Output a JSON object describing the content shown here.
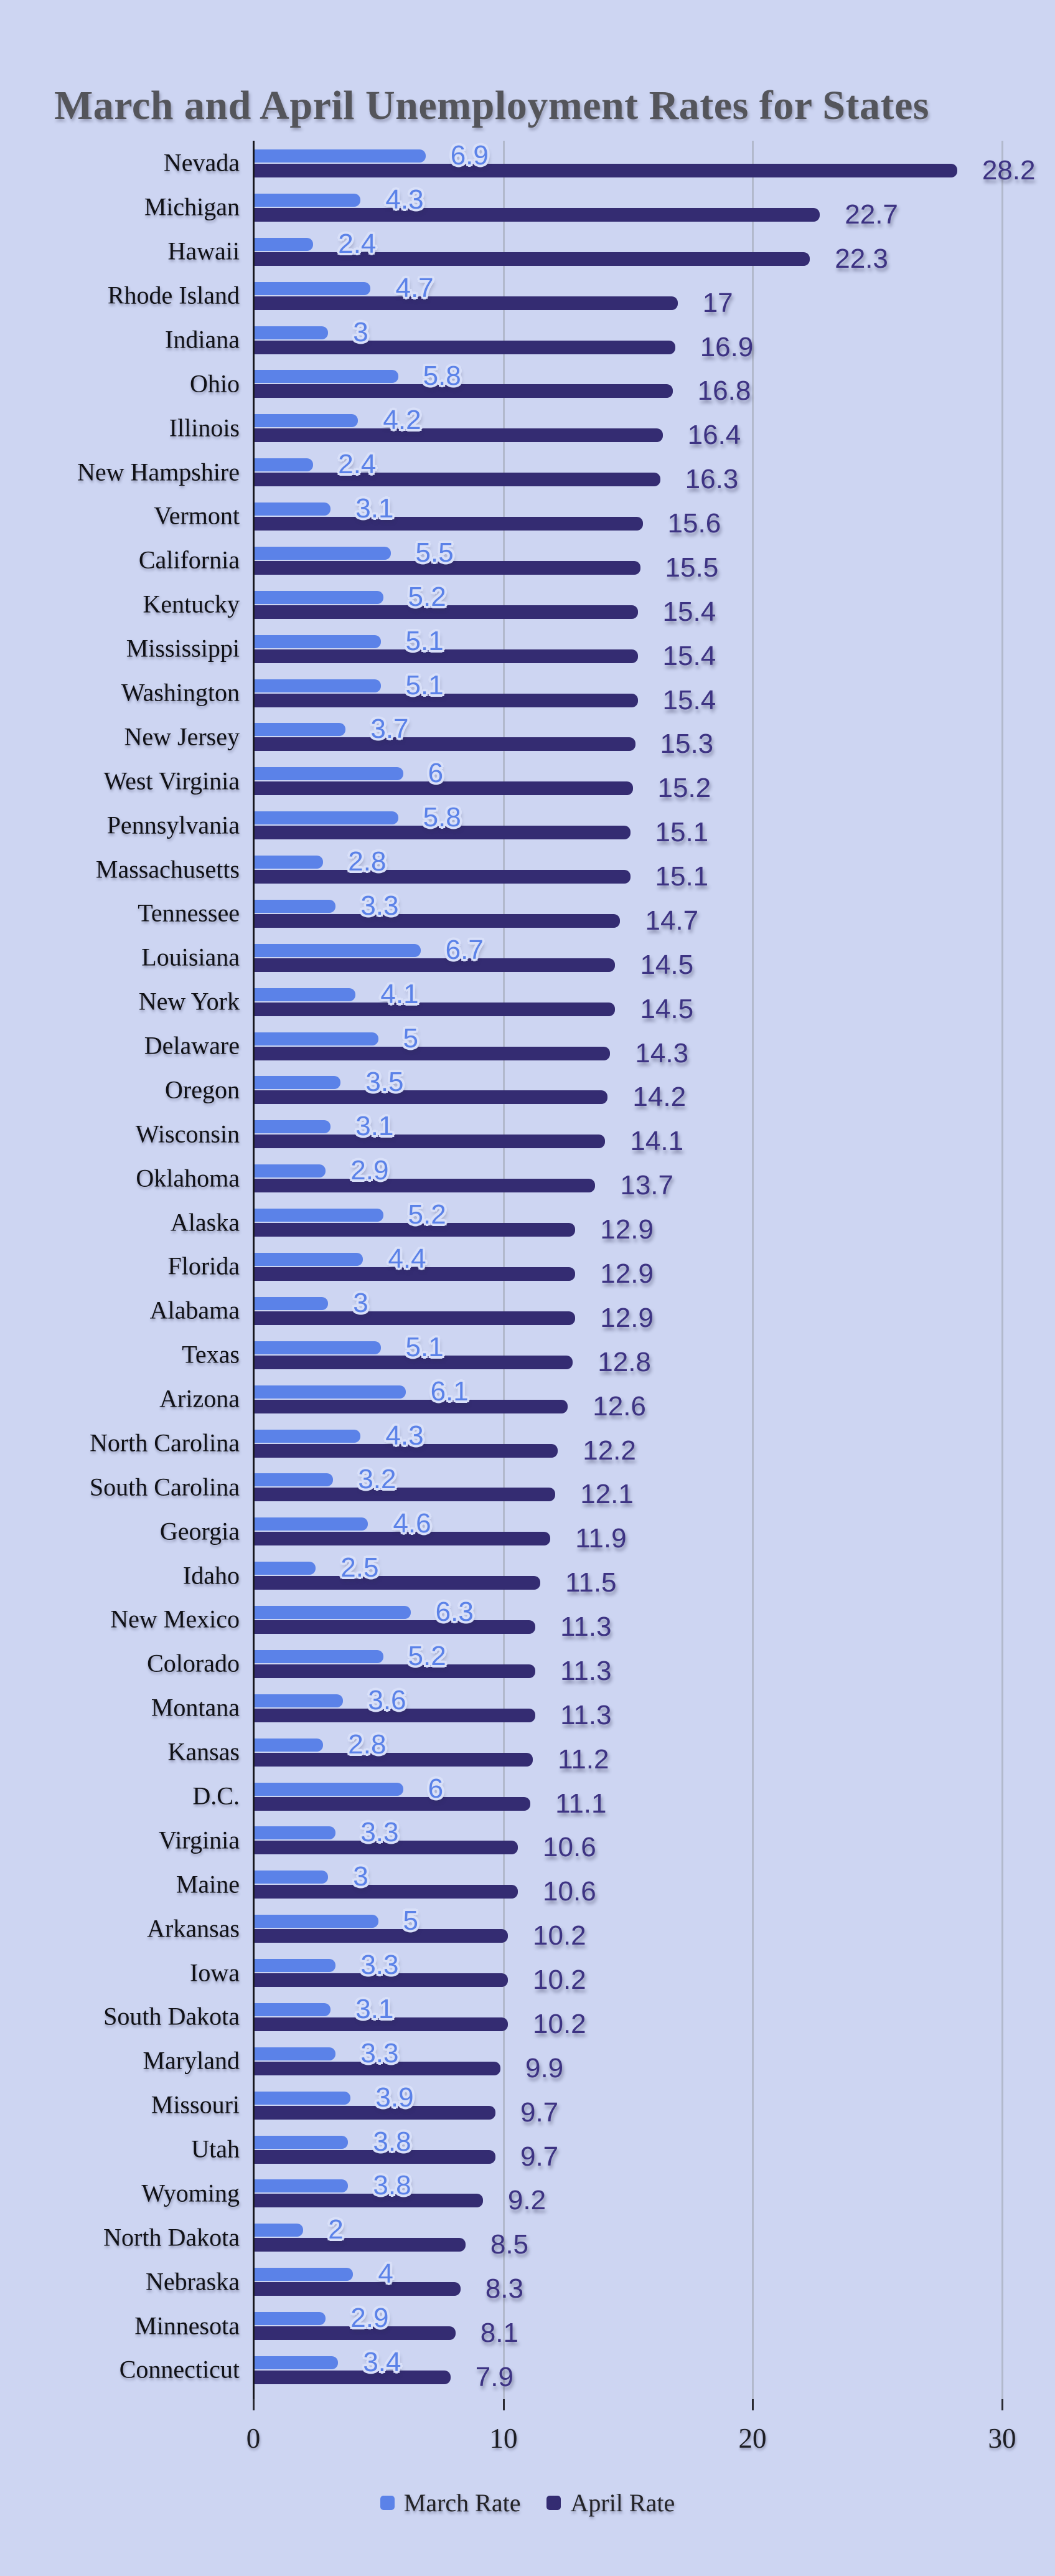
{
  "title": "March and April Unemployment Rates for States",
  "colors": {
    "background": "#cdd5f2",
    "march_bar": "#5b82e8",
    "april_bar": "#342c72",
    "march_value_label": "#5b82e8",
    "april_value_label": "#3d3383",
    "gridline": "#b2b9cc",
    "zero_axis": "#17171d",
    "title_text": "#54555b",
    "state_label_text": "#101116",
    "axis_tick_text": "#1d1e24",
    "legend_text": "#232327"
  },
  "axis": {
    "ticks": [
      "0",
      "10",
      "20",
      "30"
    ],
    "min": 0,
    "max": 30
  },
  "legend": {
    "items": [
      {
        "label": "March Rate",
        "color": "#5b82e8"
      },
      {
        "label": "April Rate",
        "color": "#342c72"
      }
    ]
  },
  "chart_data": {
    "type": "bar",
    "orientation": "horizontal",
    "title": "March and April Unemployment Rates for States",
    "xlabel": "",
    "ylabel": "",
    "xlim": [
      0,
      30
    ],
    "gridlines": [
      0,
      10,
      20,
      30
    ],
    "grid": "vertical",
    "legend_position": "bottom",
    "value_labels": true,
    "categories": [
      "Nevada",
      "Michigan",
      "Hawaii",
      "Rhode Island",
      "Indiana",
      "Ohio",
      "Illinois",
      "New Hampshire",
      "Vermont",
      "California",
      "Kentucky",
      "Mississippi",
      "Washington",
      "New Jersey",
      "West Virginia",
      "Pennsylvania",
      "Massachusetts",
      "Tennessee",
      "Louisiana",
      "New York",
      "Delaware",
      "Oregon",
      "Wisconsin",
      "Oklahoma",
      "Alaska",
      "Florida",
      "Alabama",
      "Texas",
      "Arizona",
      "North Carolina",
      "South Carolina",
      "Georgia",
      "Idaho",
      "New Mexico",
      "Colorado",
      "Montana",
      "Kansas",
      "D.C.",
      "Virginia",
      "Maine",
      "Arkansas",
      "Iowa",
      "South Dakota",
      "Maryland",
      "Missouri",
      "Utah",
      "Wyoming",
      "North Dakota",
      "Nebraska",
      "Minnesota",
      "Connecticut"
    ],
    "series": [
      {
        "name": "March Rate",
        "color": "#5b82e8",
        "values": [
          6.9,
          4.3,
          2.4,
          4.7,
          3,
          5.8,
          4.2,
          2.4,
          3.1,
          5.5,
          5.2,
          5.1,
          5.1,
          3.7,
          6,
          5.8,
          2.8,
          3.3,
          6.7,
          4.1,
          5,
          3.5,
          3.1,
          2.9,
          5.2,
          4.4,
          3,
          5.1,
          6.1,
          4.3,
          3.2,
          4.6,
          2.5,
          6.3,
          5.2,
          3.6,
          2.8,
          6,
          3.3,
          3,
          5,
          3.3,
          3.1,
          3.3,
          3.9,
          3.8,
          3.8,
          2,
          4,
          2.9,
          3.4
        ]
      },
      {
        "name": "April Rate",
        "color": "#342c72",
        "values": [
          28.2,
          22.7,
          22.3,
          17,
          16.9,
          16.8,
          16.4,
          16.3,
          15.6,
          15.5,
          15.4,
          15.4,
          15.4,
          15.3,
          15.2,
          15.1,
          15.1,
          14.7,
          14.5,
          14.5,
          14.3,
          14.2,
          14.1,
          13.7,
          12.9,
          12.9,
          12.9,
          12.8,
          12.6,
          12.2,
          12.1,
          11.9,
          11.5,
          11.3,
          11.3,
          11.3,
          11.2,
          11.1,
          10.6,
          10.6,
          10.2,
          10.2,
          10.2,
          9.9,
          9.7,
          9.7,
          9.2,
          8.5,
          8.3,
          8.1,
          7.9
        ]
      }
    ]
  }
}
